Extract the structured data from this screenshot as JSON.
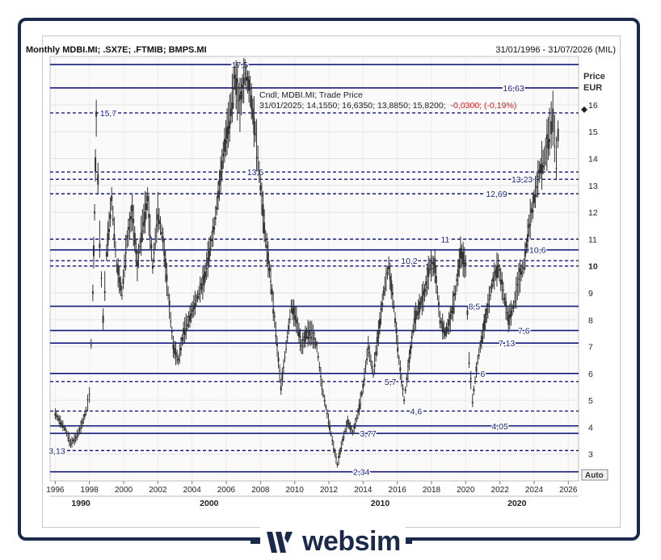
{
  "header": {
    "title": "Monthly MDBI.MI; .SX7E; .FTMIB; BMPS.MI",
    "range": "31/01/1996 - 31/07/2026 (MIL)"
  },
  "legend": {
    "line1": "Cndl; MDBI.MI; Trade Price",
    "line2": "31/01/2025; 14,1550; 16,6350; 13,8850; 15,8200;",
    "change": "-0,0300; (-0,19%)"
  },
  "axis": {
    "unit_top": "Price",
    "unit_bottom": "EUR",
    "auto_label": "Auto"
  },
  "brand": {
    "name": "websim"
  },
  "chart_data": {
    "type": "candlestick",
    "title": "Monthly MDBI.MI; .SX7E; .FTMIB; BMPS.MI",
    "ylabel": "Price EUR",
    "ylim": [
      2.0,
      17.8
    ],
    "xlim": [
      1995.7,
      2026.6
    ],
    "y_ticks": [
      3,
      4,
      5,
      6,
      7,
      8,
      9,
      10,
      11,
      12,
      13,
      14,
      15,
      16
    ],
    "x_ticks": [
      "1996",
      "1998",
      "2000",
      "2002",
      "2004",
      "2006",
      "2008",
      "2010",
      "2012",
      "2014",
      "2016",
      "2018",
      "2020",
      "2022",
      "2024",
      "2026"
    ],
    "x_ticks_values": [
      1996,
      1998,
      2000,
      2002,
      2004,
      2006,
      2008,
      2010,
      2012,
      2014,
      2016,
      2018,
      2020,
      2022,
      2024,
      2026
    ],
    "decade_labels": [
      {
        "label": "1990",
        "x": 1997.5
      },
      {
        "label": "2000",
        "x": 2005
      },
      {
        "label": "2010",
        "x": 2015
      },
      {
        "label": "2020",
        "x": 2023
      }
    ],
    "last_marker": 15.82,
    "levels": [
      {
        "value": 17.5,
        "label": "17,5",
        "style": "solid",
        "label_x": 2006.8
      },
      {
        "value": 16.63,
        "label": "16,63",
        "style": "solid",
        "label_x": 2022.8
      },
      {
        "value": 15.7,
        "label": "15,7",
        "style": "dashed",
        "label_x": 1999.1
      },
      {
        "value": 13.5,
        "label": "13,5",
        "style": "dashed",
        "label_x": 2007.7
      },
      {
        "value": 13.23,
        "label": "13,23",
        "style": "dashed",
        "label_x": 2023.3
      },
      {
        "value": 12.69,
        "label": "12,69",
        "style": "dashed",
        "label_x": 2021.8
      },
      {
        "value": 11.0,
        "label": "11",
        "style": "dashed",
        "label_x": 2018.8
      },
      {
        "value": 10.6,
        "label": "10,6",
        "style": "solid",
        "label_x": 2024.2
      },
      {
        "value": 10.2,
        "label": "10,2",
        "style": "dashed",
        "label_x": 2016.7
      },
      {
        "value": 10.0,
        "label": "10",
        "style": "dashed",
        "label_x": 2017.9
      },
      {
        "value": 8.5,
        "label": "8,5",
        "style": "solid",
        "label_x": 2020.5
      },
      {
        "value": 7.6,
        "label": "7,6",
        "style": "solid",
        "label_x": 2023.4
      },
      {
        "value": 7.13,
        "label": "7,13",
        "style": "solid",
        "label_x": 2022.4
      },
      {
        "value": 6.0,
        "label": "6",
        "style": "solid",
        "label_x": 2021.0
      },
      {
        "value": 5.7,
        "label": "5,7",
        "style": "dashed",
        "label_x": 2015.6
      },
      {
        "value": 4.6,
        "label": "4,6",
        "style": "dashed",
        "label_x": 2017.1
      },
      {
        "value": 4.05,
        "label": "4,05",
        "style": "solid",
        "label_x": 2022.0
      },
      {
        "value": 3.77,
        "label": "3,77",
        "style": "solid",
        "label_x": 2014.3
      },
      {
        "value": 3.13,
        "label": "3,13",
        "style": "dashed",
        "label_x": 1996.1
      },
      {
        "value": 2.34,
        "label": "2,34",
        "style": "solid",
        "label_x": 2013.9
      }
    ],
    "price_path": [
      [
        1996.0,
        4.5
      ],
      [
        1996.3,
        4.2
      ],
      [
        1996.6,
        3.9
      ],
      [
        1996.9,
        3.4
      ],
      [
        1997.2,
        3.6
      ],
      [
        1997.5,
        4.0
      ],
      [
        1997.8,
        4.6
      ],
      [
        1998.0,
        5.2
      ],
      [
        1998.2,
        9.0
      ],
      [
        1998.3,
        12.0
      ],
      [
        1998.4,
        15.5
      ],
      [
        1998.6,
        11.0
      ],
      [
        1998.8,
        8.0
      ],
      [
        1999.0,
        10.5
      ],
      [
        1999.3,
        12.5
      ],
      [
        1999.6,
        10.0
      ],
      [
        1999.9,
        9.0
      ],
      [
        2000.2,
        11.0
      ],
      [
        2000.5,
        12.0
      ],
      [
        2000.8,
        10.0
      ],
      [
        2001.1,
        11.5
      ],
      [
        2001.4,
        12.5
      ],
      [
        2001.7,
        10.0
      ],
      [
        2002.0,
        12.0
      ],
      [
        2002.3,
        11.0
      ],
      [
        2002.6,
        9.0
      ],
      [
        2002.9,
        7.0
      ],
      [
        2003.2,
        6.5
      ],
      [
        2003.5,
        7.5
      ],
      [
        2003.8,
        8.0
      ],
      [
        2004.1,
        8.5
      ],
      [
        2004.4,
        9.0
      ],
      [
        2004.7,
        9.5
      ],
      [
        2005.0,
        10.5
      ],
      [
        2005.3,
        11.5
      ],
      [
        2005.6,
        13.0
      ],
      [
        2005.9,
        14.5
      ],
      [
        2006.2,
        15.5
      ],
      [
        2006.5,
        17.0
      ],
      [
        2006.8,
        16.0
      ],
      [
        2007.1,
        17.2
      ],
      [
        2007.4,
        16.5
      ],
      [
        2007.7,
        15.0
      ],
      [
        2008.0,
        13.0
      ],
      [
        2008.3,
        11.0
      ],
      [
        2008.6,
        9.5
      ],
      [
        2008.9,
        7.5
      ],
      [
        2009.2,
        5.5
      ],
      [
        2009.5,
        7.0
      ],
      [
        2009.8,
        8.5
      ],
      [
        2010.1,
        8.0
      ],
      [
        2010.4,
        7.0
      ],
      [
        2010.7,
        7.5
      ],
      [
        2011.0,
        7.5
      ],
      [
        2011.3,
        7.0
      ],
      [
        2011.6,
        5.5
      ],
      [
        2011.9,
        4.5
      ],
      [
        2012.2,
        3.5
      ],
      [
        2012.5,
        2.6
      ],
      [
        2012.8,
        3.5
      ],
      [
        2013.1,
        4.2
      ],
      [
        2013.4,
        3.8
      ],
      [
        2013.7,
        4.5
      ],
      [
        2014.0,
        5.5
      ],
      [
        2014.3,
        7.0
      ],
      [
        2014.6,
        6.0
      ],
      [
        2014.9,
        7.5
      ],
      [
        2015.2,
        9.0
      ],
      [
        2015.5,
        10.0
      ],
      [
        2015.8,
        8.5
      ],
      [
        2016.1,
        6.5
      ],
      [
        2016.4,
        5.0
      ],
      [
        2016.7,
        6.5
      ],
      [
        2017.0,
        8.0
      ],
      [
        2017.3,
        8.5
      ],
      [
        2017.6,
        9.0
      ],
      [
        2017.9,
        10.0
      ],
      [
        2018.2,
        10.0
      ],
      [
        2018.5,
        8.0
      ],
      [
        2018.8,
        7.5
      ],
      [
        2019.1,
        8.0
      ],
      [
        2019.4,
        9.0
      ],
      [
        2019.7,
        10.5
      ],
      [
        2020.0,
        10.0
      ],
      [
        2020.2,
        6.5
      ],
      [
        2020.4,
        5.0
      ],
      [
        2020.7,
        6.5
      ],
      [
        2021.0,
        7.5
      ],
      [
        2021.3,
        8.5
      ],
      [
        2021.6,
        9.5
      ],
      [
        2021.9,
        10.0
      ],
      [
        2022.2,
        9.0
      ],
      [
        2022.5,
        8.0
      ],
      [
        2022.8,
        8.5
      ],
      [
        2023.1,
        9.5
      ],
      [
        2023.4,
        10.0
      ],
      [
        2023.7,
        11.5
      ],
      [
        2024.0,
        12.5
      ],
      [
        2024.3,
        13.5
      ],
      [
        2024.6,
        14.0
      ],
      [
        2024.9,
        15.0
      ],
      [
        2025.1,
        15.5
      ],
      [
        2025.3,
        14.0
      ],
      [
        2025.5,
        15.8
      ]
    ]
  }
}
